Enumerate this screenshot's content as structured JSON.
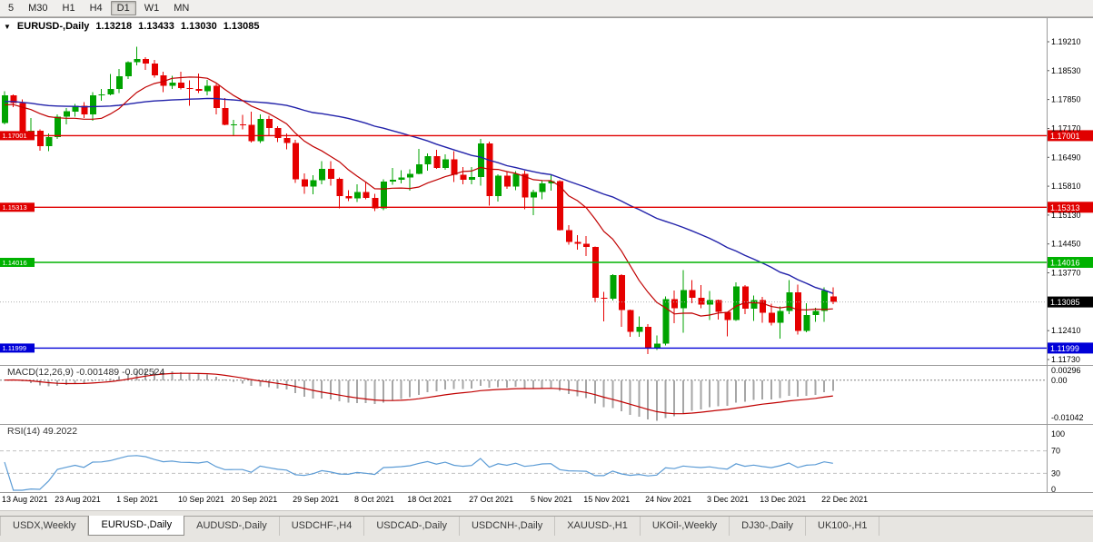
{
  "toolbar": {
    "timeframes": [
      "5",
      "M30",
      "H1",
      "H4",
      "D1",
      "W1",
      "MN"
    ],
    "active_timeframe": "D1"
  },
  "chart": {
    "header": {
      "collapse_icon": "▼",
      "symbol": "EURUSD-,Daily",
      "open": "1.13218",
      "high": "1.13433",
      "low": "1.13030",
      "close": "1.13085"
    }
  },
  "indicators": {
    "macd": {
      "label": "MACD(12,26,9)",
      "main_value": "-0.001489",
      "signal_value": "-0.002524",
      "axis_labels": [
        "0.00296",
        "0.00",
        "-0.01042"
      ]
    },
    "rsi": {
      "label": "RSI(14)",
      "value": "49.2022",
      "axis_labels": [
        "100",
        "70",
        "30",
        "0"
      ]
    }
  },
  "tabs": {
    "items": [
      "USDX,Weekly",
      "EURUSD-,Daily",
      "AUDUSD-,Daily",
      "USDCHF-,H4",
      "USDCAD-,Daily",
      "USDCNH-,Daily",
      "XAUUSD-,H1",
      "UKOil-,Weekly",
      "DJ30-,Daily",
      "UK100-,H1"
    ],
    "active_index": 1
  },
  "colors": {
    "candle_up": "#00a300",
    "candle_down": "#e60000",
    "ma_fast": "#c00000",
    "ma_slow": "#2222aa",
    "line_red": "#e00000",
    "line_green": "#00b200",
    "line_blue": "#0000d8",
    "bid_label_bg": "#000000",
    "bid_dotted_line": "#b0b0b0",
    "macd_histogram": "#a6a6a6",
    "macd_signal": "#c00000",
    "rsi_line": "#5b9bd5",
    "level_dash": "#c0c0c0",
    "panel_divider": "#9a9a9a",
    "axis_text": "#000000"
  },
  "chart_data": {
    "type": "candlestick",
    "symbol": "EURUSD-,Daily",
    "y_axis": {
      "tick_labels": [
        "1.19210",
        "1.18530",
        "1.17850",
        "1.17170",
        "1.16490",
        "1.15810",
        "1.15130",
        "1.14450",
        "1.13770",
        "1.12410",
        "1.11730"
      ],
      "visible_range": [
        1.1162,
        1.1977
      ]
    },
    "x_axis": {
      "labels": [
        "13 Aug 2021",
        "23 Aug 2021",
        "1 Sep 2021",
        "10 Sep 2021",
        "20 Sep 2021",
        "29 Sep 2021",
        "8 Oct 2021",
        "18 Oct 2021",
        "27 Oct 2021",
        "5 Nov 2021",
        "15 Nov 2021",
        "24 Nov 2021",
        "3 Dec 2021",
        "13 Dec 2021",
        "22 Dec 2021"
      ],
      "label_indices": [
        0,
        6,
        13,
        20,
        26,
        33,
        40,
        46,
        53,
        60,
        66,
        73,
        80,
        86,
        93
      ]
    },
    "horizontal_lines": [
      {
        "price": 1.17001,
        "color": "#e00000"
      },
      {
        "price": 1.15313,
        "color": "#e00000"
      },
      {
        "price": 1.14016,
        "color": "#00b200"
      },
      {
        "price": 1.11999,
        "color": "#0000d8"
      }
    ],
    "bid_price": 1.13085,
    "moving_averages": [
      {
        "name": "fast",
        "period": 10,
        "color": "#c00000"
      },
      {
        "name": "slow",
        "period": 34,
        "color": "#2222aa"
      }
    ],
    "macd": {
      "fast": 12,
      "slow": 26,
      "signal": 9,
      "scale_max": 0.00296,
      "scale_min": -0.01042
    },
    "rsi": {
      "period": 14,
      "levels": [
        70,
        30
      ]
    },
    "candles": [
      [
        1.173,
        1.1805,
        1.1727,
        1.1795
      ],
      [
        1.1795,
        1.1797,
        1.1767,
        1.1777
      ],
      [
        1.1777,
        1.1785,
        1.1702,
        1.171
      ],
      [
        1.171,
        1.1742,
        1.1694,
        1.1712
      ],
      [
        1.1712,
        1.1715,
        1.1665,
        1.1675
      ],
      [
        1.1675,
        1.1705,
        1.1663,
        1.1697
      ],
      [
        1.1697,
        1.175,
        1.1692,
        1.1745
      ],
      [
        1.1745,
        1.1765,
        1.1727,
        1.1757
      ],
      [
        1.1757,
        1.1775,
        1.1745,
        1.177
      ],
      [
        1.177,
        1.1779,
        1.1742,
        1.175
      ],
      [
        1.175,
        1.1802,
        1.1735,
        1.1795
      ],
      [
        1.1795,
        1.181,
        1.1782,
        1.1797
      ],
      [
        1.1797,
        1.1845,
        1.1795,
        1.181
      ],
      [
        1.181,
        1.1857,
        1.18,
        1.184
      ],
      [
        1.184,
        1.1875,
        1.1833,
        1.1873
      ],
      [
        1.1873,
        1.1909,
        1.1865,
        1.188
      ],
      [
        1.188,
        1.1885,
        1.1855,
        1.187
      ],
      [
        1.187,
        1.1878,
        1.1837,
        1.1842
      ],
      [
        1.1842,
        1.1851,
        1.1802,
        1.1817
      ],
      [
        1.1817,
        1.1841,
        1.181,
        1.1825
      ],
      [
        1.1825,
        1.1851,
        1.1809,
        1.1812
      ],
      [
        1.1812,
        1.183,
        1.177,
        1.181
      ],
      [
        1.181,
        1.1846,
        1.18,
        1.1805
      ],
      [
        1.1805,
        1.1831,
        1.1795,
        1.1817
      ],
      [
        1.1817,
        1.1822,
        1.175,
        1.1765
      ],
      [
        1.1765,
        1.1788,
        1.1724,
        1.1725
      ],
      [
        1.1725,
        1.1737,
        1.17,
        1.1726
      ],
      [
        1.1726,
        1.1749,
        1.1715,
        1.1725
      ],
      [
        1.1725,
        1.1756,
        1.1684,
        1.1687
      ],
      [
        1.1687,
        1.175,
        1.1683,
        1.1739
      ],
      [
        1.1739,
        1.1747,
        1.1701,
        1.1718
      ],
      [
        1.1718,
        1.1722,
        1.1685,
        1.1695
      ],
      [
        1.1695,
        1.1705,
        1.1668,
        1.1683
      ],
      [
        1.1683,
        1.169,
        1.1589,
        1.1597
      ],
      [
        1.1597,
        1.1611,
        1.1563,
        1.158
      ],
      [
        1.158,
        1.1607,
        1.1562,
        1.1595
      ],
      [
        1.1595,
        1.164,
        1.1586,
        1.1622
      ],
      [
        1.1622,
        1.164,
        1.1582,
        1.1598
      ],
      [
        1.1598,
        1.1601,
        1.1529,
        1.1558
      ],
      [
        1.1558,
        1.1572,
        1.1546,
        1.1552
      ],
      [
        1.1552,
        1.1586,
        1.1544,
        1.1567
      ],
      [
        1.1567,
        1.159,
        1.155,
        1.1553
      ],
      [
        1.1553,
        1.1563,
        1.1522,
        1.1529
      ],
      [
        1.1529,
        1.1597,
        1.1525,
        1.1592
      ],
      [
        1.1592,
        1.1624,
        1.1584,
        1.1596
      ],
      [
        1.1596,
        1.1619,
        1.1588,
        1.1601
      ],
      [
        1.1601,
        1.1621,
        1.1571,
        1.161
      ],
      [
        1.161,
        1.1669,
        1.1609,
        1.1633
      ],
      [
        1.1633,
        1.1658,
        1.1617,
        1.1652
      ],
      [
        1.1652,
        1.1667,
        1.1622,
        1.1624
      ],
      [
        1.1624,
        1.1656,
        1.162,
        1.1644
      ],
      [
        1.1644,
        1.1664,
        1.1591,
        1.1608
      ],
      [
        1.1608,
        1.1626,
        1.1585,
        1.1596
      ],
      [
        1.1596,
        1.1626,
        1.1585,
        1.1603
      ],
      [
        1.1603,
        1.1692,
        1.1582,
        1.1682
      ],
      [
        1.1682,
        1.1686,
        1.1535,
        1.1558
      ],
      [
        1.1558,
        1.1609,
        1.1545,
        1.1606
      ],
      [
        1.1606,
        1.1614,
        1.1575,
        1.158
      ],
      [
        1.158,
        1.1616,
        1.1572,
        1.161
      ],
      [
        1.161,
        1.1617,
        1.1527,
        1.1554
      ],
      [
        1.1554,
        1.1573,
        1.1513,
        1.1567
      ],
      [
        1.1567,
        1.1595,
        1.155,
        1.1588
      ],
      [
        1.1588,
        1.1609,
        1.157,
        1.1593
      ],
      [
        1.1593,
        1.1595,
        1.1476,
        1.1478
      ],
      [
        1.1478,
        1.1489,
        1.1443,
        1.145
      ],
      [
        1.145,
        1.1466,
        1.1432,
        1.1445
      ],
      [
        1.1445,
        1.1464,
        1.1417,
        1.1438
      ],
      [
        1.1438,
        1.1439,
        1.1308,
        1.1318
      ],
      [
        1.1318,
        1.1332,
        1.1263,
        1.1316
      ],
      [
        1.1316,
        1.1374,
        1.1312,
        1.1372
      ],
      [
        1.1372,
        1.1374,
        1.125,
        1.1289
      ],
      [
        1.1289,
        1.1291,
        1.1226,
        1.1238
      ],
      [
        1.1238,
        1.1275,
        1.1226,
        1.125
      ],
      [
        1.125,
        1.1256,
        1.1186,
        1.12
      ],
      [
        1.12,
        1.123,
        1.1195,
        1.121
      ],
      [
        1.121,
        1.1322,
        1.1206,
        1.1315
      ],
      [
        1.1315,
        1.1335,
        1.1258,
        1.1294
      ],
      [
        1.1294,
        1.1383,
        1.1236,
        1.1337
      ],
      [
        1.1337,
        1.136,
        1.1305,
        1.1318
      ],
      [
        1.1318,
        1.1348,
        1.1294,
        1.1302
      ],
      [
        1.1302,
        1.1334,
        1.1266,
        1.1313
      ],
      [
        1.1313,
        1.1314,
        1.1267,
        1.1285
      ],
      [
        1.1285,
        1.1285,
        1.1227,
        1.1266
      ],
      [
        1.1266,
        1.1355,
        1.1264,
        1.1345
      ],
      [
        1.1345,
        1.1348,
        1.128,
        1.1293
      ],
      [
        1.1293,
        1.1324,
        1.1264,
        1.1313
      ],
      [
        1.1313,
        1.132,
        1.126,
        1.1283
      ],
      [
        1.1283,
        1.1304,
        1.1253,
        1.126
      ],
      [
        1.126,
        1.1298,
        1.1222,
        1.1287
      ],
      [
        1.1287,
        1.136,
        1.128,
        1.1331
      ],
      [
        1.1331,
        1.1349,
        1.1232,
        1.124
      ],
      [
        1.124,
        1.1305,
        1.1237,
        1.1278
      ],
      [
        1.1278,
        1.1295,
        1.1262,
        1.1287
      ],
      [
        1.1287,
        1.1343,
        1.1262,
        1.1335
      ],
      [
        1.13218,
        1.13433,
        1.1303,
        1.13085
      ]
    ]
  }
}
